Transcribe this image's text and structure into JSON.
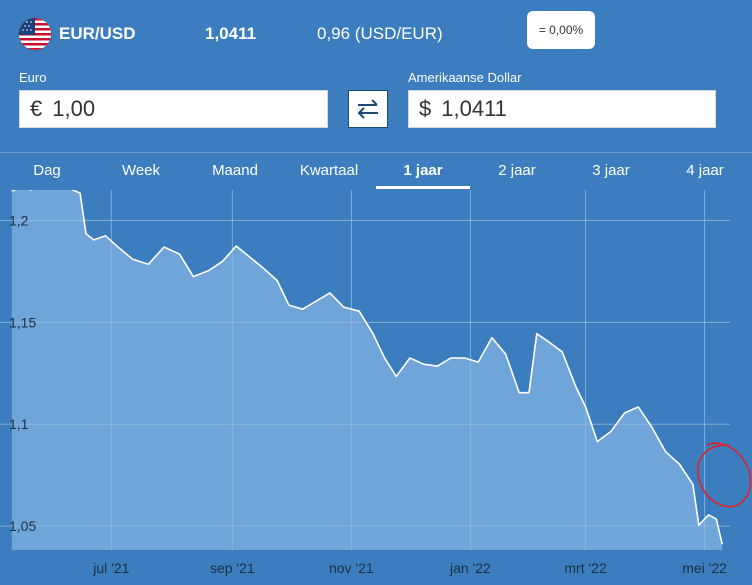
{
  "header": {
    "pair": "EUR/USD",
    "rate": "1,0411",
    "inverse": "0,96 (USD/EUR)",
    "change": "= 0,00%"
  },
  "converter": {
    "from_label": "Euro",
    "from_symbol": "€",
    "from_value": "1,00",
    "to_label": "Amerikaanse Dollar",
    "to_symbol": "$",
    "to_value": "1,0411"
  },
  "tabs": [
    {
      "label": "Dag",
      "active": false
    },
    {
      "label": "Week",
      "active": false
    },
    {
      "label": "Maand",
      "active": false
    },
    {
      "label": "Kwartaal",
      "active": false
    },
    {
      "label": "1 jaar",
      "active": true
    },
    {
      "label": "2 jaar",
      "active": false
    },
    {
      "label": "3 jaar",
      "active": false
    },
    {
      "label": "4 jaar",
      "active": false
    }
  ],
  "colors": {
    "background": "#3b7dbf",
    "area_fill": "#6fa5d8",
    "line": "#ffffff",
    "annotation": "#e0202a"
  },
  "chart_data": {
    "type": "area",
    "title": "",
    "xlabel": "",
    "ylabel": "",
    "ylim": [
      1.025,
      1.215
    ],
    "yticks": [
      1.2,
      1.15,
      1.1,
      1.05
    ],
    "ytick_labels": [
      "1,2",
      "1,15",
      "1,1",
      "1,05"
    ],
    "xtick_labels": [
      "jul '21",
      "sep '21",
      "nov '21",
      "jan '22",
      "mrt '22",
      "mei '22"
    ],
    "xtick_dates": [
      "2021-07-01",
      "2021-09-01",
      "2021-11-01",
      "2022-01-01",
      "2022-03-01",
      "2022-05-01"
    ],
    "grid": true,
    "series": [
      {
        "x": [
          "2021-05-11",
          "2021-05-16",
          "2021-05-21",
          "2021-05-26",
          "2021-05-31",
          "2021-06-05",
          "2021-06-10",
          "2021-06-15",
          "2021-06-18",
          "2021-06-22",
          "2021-06-28",
          "2021-07-05",
          "2021-07-12",
          "2021-07-20",
          "2021-07-28",
          "2021-08-05",
          "2021-08-12",
          "2021-08-20",
          "2021-08-27",
          "2021-09-03",
          "2021-09-10",
          "2021-09-17",
          "2021-09-24",
          "2021-09-30",
          "2021-10-07",
          "2021-10-14",
          "2021-10-21",
          "2021-10-28",
          "2021-11-05",
          "2021-11-12",
          "2021-11-18",
          "2021-11-24",
          "2021-12-01",
          "2021-12-08",
          "2021-12-15",
          "2021-12-22",
          "2021-12-29",
          "2022-01-05",
          "2022-01-12",
          "2022-01-19",
          "2022-01-26",
          "2022-01-31",
          "2022-02-04",
          "2022-02-10",
          "2022-02-17",
          "2022-02-24",
          "2022-03-01",
          "2022-03-07",
          "2022-03-14",
          "2022-03-21",
          "2022-03-28",
          "2022-04-04",
          "2022-04-11",
          "2022-04-18",
          "2022-04-25",
          "2022-04-28",
          "2022-05-03",
          "2022-05-07",
          "2022-05-10"
        ],
        "values": [
          1.2145,
          1.2165,
          1.215,
          1.2175,
          1.2165,
          1.216,
          1.2155,
          1.2135,
          1.1935,
          1.1905,
          1.1925,
          1.1865,
          1.181,
          1.1785,
          1.187,
          1.1835,
          1.1725,
          1.1755,
          1.18,
          1.1875,
          1.182,
          1.1765,
          1.1705,
          1.1585,
          1.1565,
          1.1605,
          1.1645,
          1.1575,
          1.1555,
          1.1445,
          1.1325,
          1.1235,
          1.1325,
          1.1295,
          1.1285,
          1.1325,
          1.1325,
          1.1305,
          1.1425,
          1.1345,
          1.1155,
          1.1155,
          1.1445,
          1.1405,
          1.1355,
          1.1185,
          1.1085,
          1.0915,
          1.0965,
          1.1055,
          1.1085,
          1.0985,
          1.0865,
          1.0805,
          1.0705,
          1.0505,
          1.0555,
          1.0535,
          1.0411
        ]
      }
    ]
  }
}
